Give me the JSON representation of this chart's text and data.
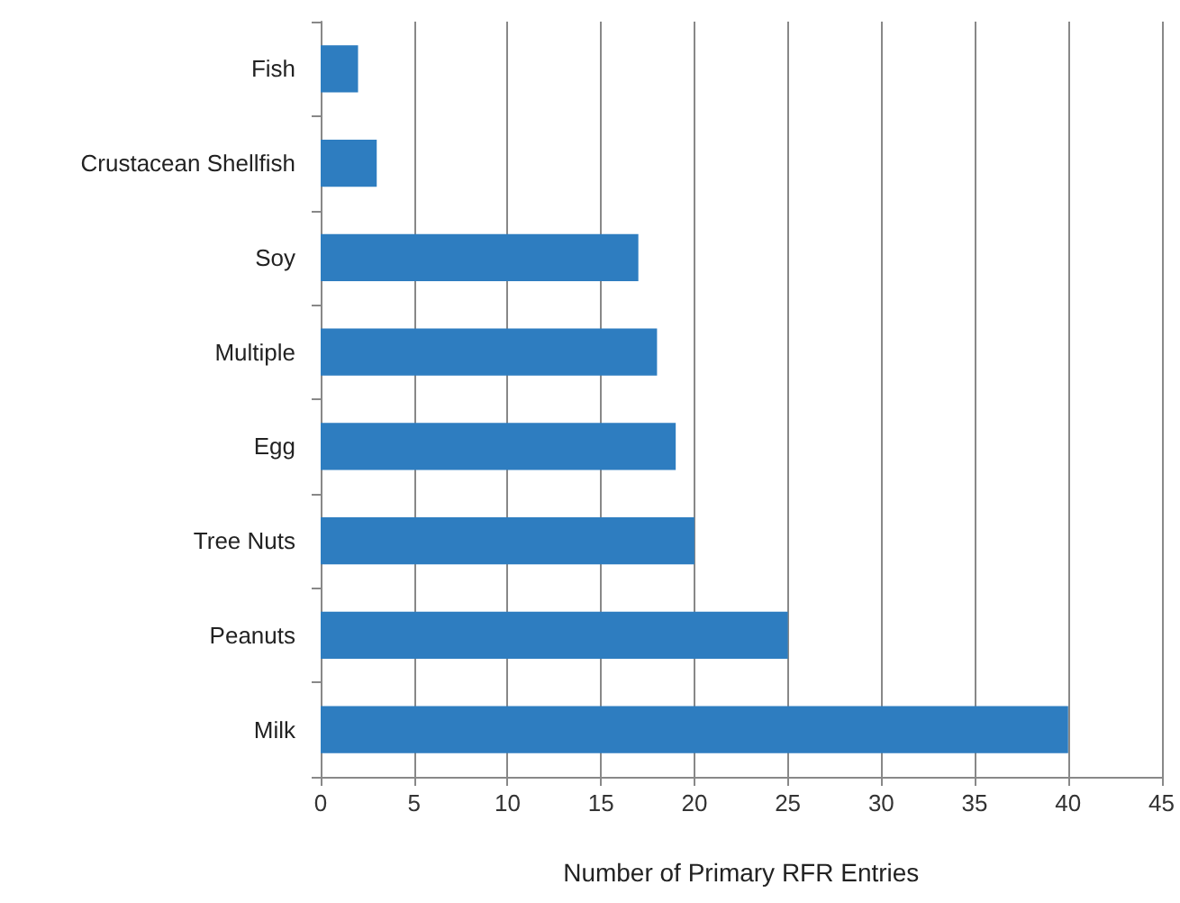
{
  "chart_data": {
    "type": "bar",
    "orientation": "horizontal",
    "categories": [
      "Fish",
      "Crustacean Shellfish",
      "Soy",
      "Multiple",
      "Egg",
      "Tree Nuts",
      "Peanuts",
      "Milk"
    ],
    "values": [
      2,
      3,
      17,
      18,
      19,
      20,
      25,
      40
    ],
    "color": "#2e7dc0",
    "xlabel": "Number of Primary RFR Entries",
    "xlim": [
      0,
      45
    ],
    "xticks": [
      0,
      5,
      10,
      15,
      20,
      25,
      30,
      35,
      40,
      45
    ],
    "grid": "x"
  }
}
